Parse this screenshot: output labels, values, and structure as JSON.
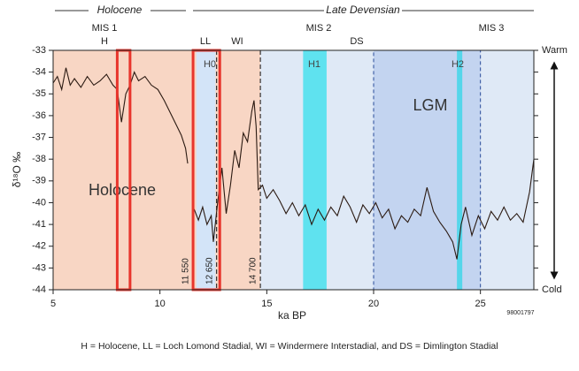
{
  "chart_data": {
    "type": "line",
    "period_labels": [
      "Holocene",
      "Late Devensian"
    ],
    "stage_labels": [
      "MIS 1",
      "MIS 2",
      "MIS 3"
    ],
    "phase_labels": [
      "H",
      "LL",
      "WI",
      "DS"
    ],
    "ylabel": "δ¹⁸O ‰",
    "xlabel": "ka BP",
    "warm_label": "Warm",
    "cold_label": "Cold",
    "code": "98001797",
    "caption": "H = Holocene, LL = Loch Lomond Stadial, WI = Windermere Interstadial, and DS = Dimlington Stadial",
    "xlim": [
      5,
      27.5
    ],
    "ylim": [
      -44,
      -33
    ],
    "xticks": [
      5,
      10,
      15,
      20,
      25
    ],
    "yticks": [
      -33,
      -34,
      -35,
      -36,
      -37,
      -38,
      -39,
      -40,
      -41,
      -42,
      -43,
      -44
    ],
    "shaded_regions": [
      {
        "x": [
          5,
          14.7
        ],
        "color": "#f8d6c4",
        "label": "Holocene"
      },
      {
        "x": [
          14.7,
          27.5
        ],
        "color": "#dfe9f6"
      },
      {
        "x": [
          11.7,
          12.6
        ],
        "color": "#d3e4f8",
        "label": "H0"
      },
      {
        "x": [
          20,
          25
        ],
        "color": "#c3d4f0",
        "label": "LGM",
        "dashed": true
      },
      {
        "x": [
          16.7,
          17.8
        ],
        "color": "#5fe2ef",
        "label": "H1"
      },
      {
        "x": [
          23.9,
          24.15
        ],
        "color": "#55d6ea",
        "label": "H2"
      }
    ],
    "highlights": [
      [
        8.0,
        8.6
      ],
      [
        11.55,
        12.8
      ]
    ],
    "highlight_color": "#e8352c",
    "boundaries": [
      {
        "value": 11.55,
        "label": "11 550"
      },
      {
        "value": 12.65,
        "label": "12 650"
      },
      {
        "value": 14.7,
        "label": "14 700"
      }
    ],
    "x": [
      5.0,
      5.2,
      5.4,
      5.6,
      5.8,
      6.0,
      6.3,
      6.6,
      6.9,
      7.2,
      7.5,
      7.8,
      8.0,
      8.2,
      8.4,
      8.6,
      8.8,
      9.0,
      9.3,
      9.6,
      9.9,
      10.2,
      10.5,
      10.8,
      11.0,
      11.2,
      11.3,
      11.45,
      11.6,
      11.8,
      12.0,
      12.2,
      12.4,
      12.5,
      12.7,
      12.9,
      13.1,
      13.3,
      13.5,
      13.7,
      13.9,
      14.1,
      14.3,
      14.4,
      14.5,
      14.6,
      14.8,
      15.0,
      15.3,
      15.6,
      15.9,
      16.2,
      16.5,
      16.8,
      17.1,
      17.4,
      17.7,
      18.0,
      18.3,
      18.6,
      18.9,
      19.2,
      19.5,
      19.8,
      20.1,
      20.4,
      20.7,
      21.0,
      21.3,
      21.6,
      21.9,
      22.2,
      22.5,
      22.8,
      23.1,
      23.4,
      23.7,
      23.9,
      24.1,
      24.3,
      24.6,
      24.9,
      25.2,
      25.5,
      25.8,
      26.1,
      26.4,
      26.7,
      27.0,
      27.3,
      27.5
    ],
    "series": [
      {
        "name": null,
        "color": "#2b1a12",
        "values": [
          -34.5,
          -34.2,
          -34.8,
          -33.8,
          -34.6,
          -34.3,
          -34.7,
          -34.2,
          -34.6,
          -34.4,
          -34.1,
          -34.6,
          -34.8,
          -36.3,
          -35.0,
          -34.6,
          -34.0,
          -34.4,
          -34.2,
          -34.6,
          -34.8,
          -35.3,
          -35.9,
          -36.5,
          -36.9,
          -37.5,
          -38.2,
          null,
          -40.3,
          -40.8,
          -40.2,
          -41.0,
          -40.6,
          -41.8,
          -40.0,
          -38.4,
          -40.5,
          -39.2,
          -37.6,
          -38.4,
          -36.8,
          -37.2,
          -35.8,
          -35.3,
          -36.5,
          -39.4,
          -39.2,
          -39.8,
          -39.4,
          -39.9,
          -40.5,
          -40.0,
          -40.6,
          -40.1,
          -41.0,
          -40.3,
          -40.8,
          -40.2,
          -40.6,
          -39.7,
          -40.2,
          -40.9,
          -40.1,
          -40.5,
          -40.0,
          -40.7,
          -40.3,
          -41.2,
          -40.6,
          -40.9,
          -40.3,
          -40.6,
          -39.3,
          -40.4,
          -40.9,
          -41.3,
          -41.8,
          -42.6,
          -41.0,
          -40.2,
          -41.5,
          -40.6,
          -41.2,
          -40.4,
          -40.8,
          -40.2,
          -40.8,
          -40.5,
          -40.9,
          -39.5,
          -38.0
        ]
      }
    ]
  }
}
